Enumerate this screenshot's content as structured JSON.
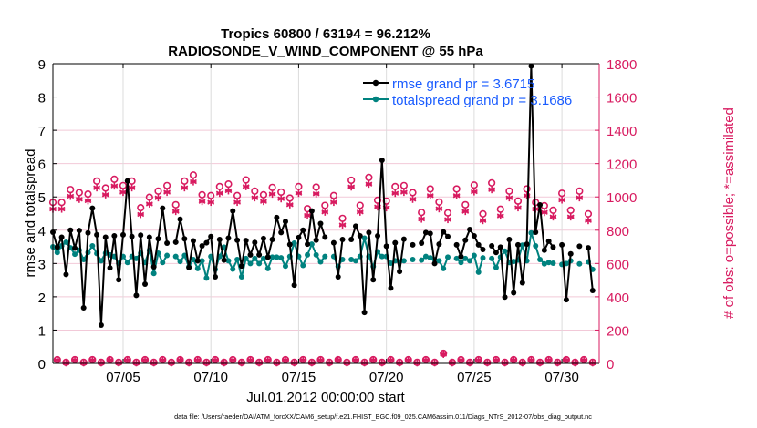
{
  "chart_data": {
    "type": "line",
    "title_line1": "Tropics 60800 / 63194 = 96.212%",
    "title_line2": "RADIOSONDE_V_WIND_COMPONENT @ 55 hPa",
    "ylabel_left": "rmse and totalspread",
    "ylabel_right": "# of obs: o=possible; *=assimilated",
    "xlabel": "Jul.01,2012 00:00:00 start",
    "footnote": "data file: /Users/raeder/DAI/ATM_forcXX/CAM6_setup/f.e21.FHIST_BGC.f09_025.CAM6assim.011/Diags_NTrS_2012-07/obs_diag_output.nc",
    "start_time": "2012-07-01 00:00",
    "time_step_hours": 6,
    "xlim": [
      "2012-07-01 00:00",
      "2012-08-01 03:00"
    ],
    "x_ticks": [
      {
        "date": "2012-07-05",
        "label": "07/05"
      },
      {
        "date": "2012-07-10",
        "label": "07/10"
      },
      {
        "date": "2012-07-15",
        "label": "07/15"
      },
      {
        "date": "2012-07-20",
        "label": "07/20"
      },
      {
        "date": "2012-07-25",
        "label": "07/25"
      },
      {
        "date": "2012-07-30",
        "label": "07/30"
      }
    ],
    "ylim_left": [
      0,
      9
    ],
    "y_ticks_left": [
      "0",
      "1",
      "2",
      "3",
      "4",
      "5",
      "6",
      "7",
      "8",
      "9"
    ],
    "ylim_right": [
      0,
      1800
    ],
    "y_ticks_right": [
      "0",
      "200",
      "400",
      "600",
      "800",
      "1000",
      "1200",
      "1400",
      "1600",
      "1800"
    ],
    "grid": true,
    "legend_placement": "top-right",
    "colors": {
      "rmse": "#000000",
      "totalspread": "#00827f",
      "obs": "#d81b60",
      "legend_text": "#1a5cff",
      "right_axis": "#d81b60"
    },
    "series": [
      {
        "name": "rmse grand pr = 3.6715",
        "axis": "left",
        "values": [
          3.94,
          3.49,
          3.79,
          2.67,
          4.0,
          3.46,
          3.99,
          1.67,
          3.92,
          4.66,
          3.86,
          1.15,
          3.79,
          2.87,
          3.83,
          2.51,
          3.86,
          5.48,
          3.81,
          2.04,
          3.85,
          2.38,
          3.79,
          2.9,
          3.74,
          4.66,
          3.61,
          null,
          3.64,
          4.33,
          3.74,
          2.88,
          3.68,
          3.08,
          3.53,
          3.62,
          3.81,
          2.6,
          3.72,
          3.1,
          3.76,
          4.58,
          3.7,
          2.92,
          3.69,
          3.26,
          3.63,
          3.26,
          3.75,
          3.19,
          3.72,
          4.38,
          3.93,
          4.26,
          3.57,
          2.35,
          3.78,
          4.0,
          3.58,
          4.58,
          3.7,
          4.2,
          3.79,
          null,
          3.62,
          2.6,
          3.72,
          null,
          3.72,
          4.12,
          3.83,
          1.53,
          3.93,
          2.51,
          3.83,
          6.1,
          3.52,
          2.26,
          3.62,
          2.76,
          3.73,
          null,
          3.56,
          null,
          3.61,
          3.93,
          3.9,
          3.0,
          3.58,
          3.95,
          3.81,
          null,
          3.56,
          3.21,
          3.7,
          4.02,
          3.83,
          3.56,
          3.42,
          null,
          3.53,
          3.33,
          3.49,
          1.99,
          3.72,
          2.12,
          3.56,
          2.42,
          3.58,
          8.93,
          3.94,
          4.76,
          3.4,
          3.67,
          3.49,
          null,
          3.56,
          1.91,
          3.29,
          null,
          3.52,
          null,
          3.47,
          2.19
        ]
      },
      {
        "name": "totalspread grand pr = 3.1686",
        "axis": "left",
        "values": [
          3.5,
          3.33,
          3.53,
          3.64,
          3.47,
          3.28,
          3.4,
          3.12,
          3.33,
          3.53,
          3.3,
          3.08,
          3.31,
          3.26,
          3.21,
          3.0,
          3.21,
          3.03,
          3.21,
          3.15,
          3.31,
          3.03,
          3.4,
          2.7,
          3.31,
          3.03,
          3.24,
          null,
          3.21,
          3.06,
          3.24,
          2.9,
          3.12,
          2.85,
          3.08,
          2.56,
          3.21,
          2.82,
          3.21,
          3.49,
          3.08,
          2.83,
          3.12,
          2.6,
          3.15,
          3.0,
          3.15,
          3.0,
          3.15,
          2.85,
          3.19,
          3.19,
          3.17,
          2.92,
          3.21,
          3.61,
          3.21,
          2.94,
          3.26,
          3.58,
          3.26,
          3.05,
          3.21,
          null,
          3.21,
          2.91,
          3.12,
          null,
          3.12,
          3.08,
          3.21,
          3.76,
          3.21,
          2.91,
          3.35,
          3.21,
          3.21,
          3.01,
          3.08,
          3.05,
          3.08,
          null,
          3.12,
          null,
          3.1,
          3.21,
          3.17,
          3.12,
          3.08,
          2.85,
          3.19,
          null,
          3.15,
          3.03,
          3.15,
          3.08,
          3.24,
          2.74,
          3.17,
          null,
          3.15,
          2.88,
          3.19,
          3.37,
          3.03,
          3.06,
          3.1,
          3.55,
          3.08,
          3.92,
          3.53,
          3.12,
          2.99,
          3.03,
          3.01,
          null,
          2.97,
          3.0,
          3.08,
          null,
          2.99,
          null,
          3.05,
          2.82
        ]
      },
      {
        "name": "possible",
        "axis": "right",
        "marker": "o",
        "values": [
          967,
          22,
          967,
          6,
          1044,
          22,
          1026,
          6,
          1017,
          22,
          1095,
          6,
          1053,
          22,
          1106,
          6,
          1068,
          22,
          1095,
          6,
          935,
          22,
          998,
          6,
          1035,
          22,
          1068,
          6,
          953,
          22,
          1095,
          6,
          1131,
          22,
          1013,
          6,
          1008,
          22,
          1062,
          6,
          1077,
          22,
          1008,
          6,
          1102,
          22,
          1035,
          6,
          1013,
          22,
          1057,
          6,
          1029,
          22,
          993,
          6,
          1062,
          22,
          929,
          6,
          1059,
          22,
          949,
          6,
          1008,
          22,
          871,
          6,
          1100,
          22,
          949,
          6,
          1117,
          22,
          980,
          6,
          975,
          22,
          1062,
          6,
          1068,
          22,
          1026,
          6,
          907,
          22,
          1048,
          6,
          969,
          60,
          904,
          6,
          1048,
          22,
          953,
          6,
          1071,
          22,
          898,
          6,
          1084,
          22,
          926,
          6,
          1035,
          22,
          975,
          6,
          1048,
          22,
          967,
          6,
          947,
          22,
          920,
          6,
          1022,
          22,
          920,
          6,
          1035,
          22,
          898,
          6
        ]
      },
      {
        "name": "assimilated",
        "axis": "right",
        "marker": "*",
        "values": [
          927,
          20,
          927,
          4,
          1004,
          20,
          986,
          4,
          977,
          20,
          1055,
          4,
          1013,
          20,
          1066,
          4,
          1028,
          20,
          1055,
          4,
          895,
          20,
          958,
          4,
          995,
          20,
          1028,
          4,
          913,
          20,
          1055,
          4,
          1091,
          20,
          973,
          4,
          968,
          20,
          1022,
          4,
          1037,
          20,
          968,
          4,
          1062,
          20,
          995,
          4,
          973,
          20,
          1017,
          4,
          989,
          20,
          953,
          4,
          1022,
          20,
          889,
          4,
          1019,
          20,
          909,
          4,
          968,
          20,
          831,
          4,
          1060,
          20,
          909,
          4,
          1077,
          20,
          940,
          4,
          935,
          20,
          1022,
          4,
          1028,
          20,
          986,
          4,
          867,
          20,
          1008,
          4,
          929,
          55,
          864,
          4,
          1008,
          20,
          913,
          4,
          1031,
          20,
          858,
          4,
          1044,
          20,
          886,
          4,
          995,
          20,
          935,
          4,
          1008,
          20,
          927,
          4,
          907,
          20,
          880,
          4,
          982,
          20,
          880,
          4,
          995,
          20,
          858,
          4
        ]
      }
    ]
  }
}
